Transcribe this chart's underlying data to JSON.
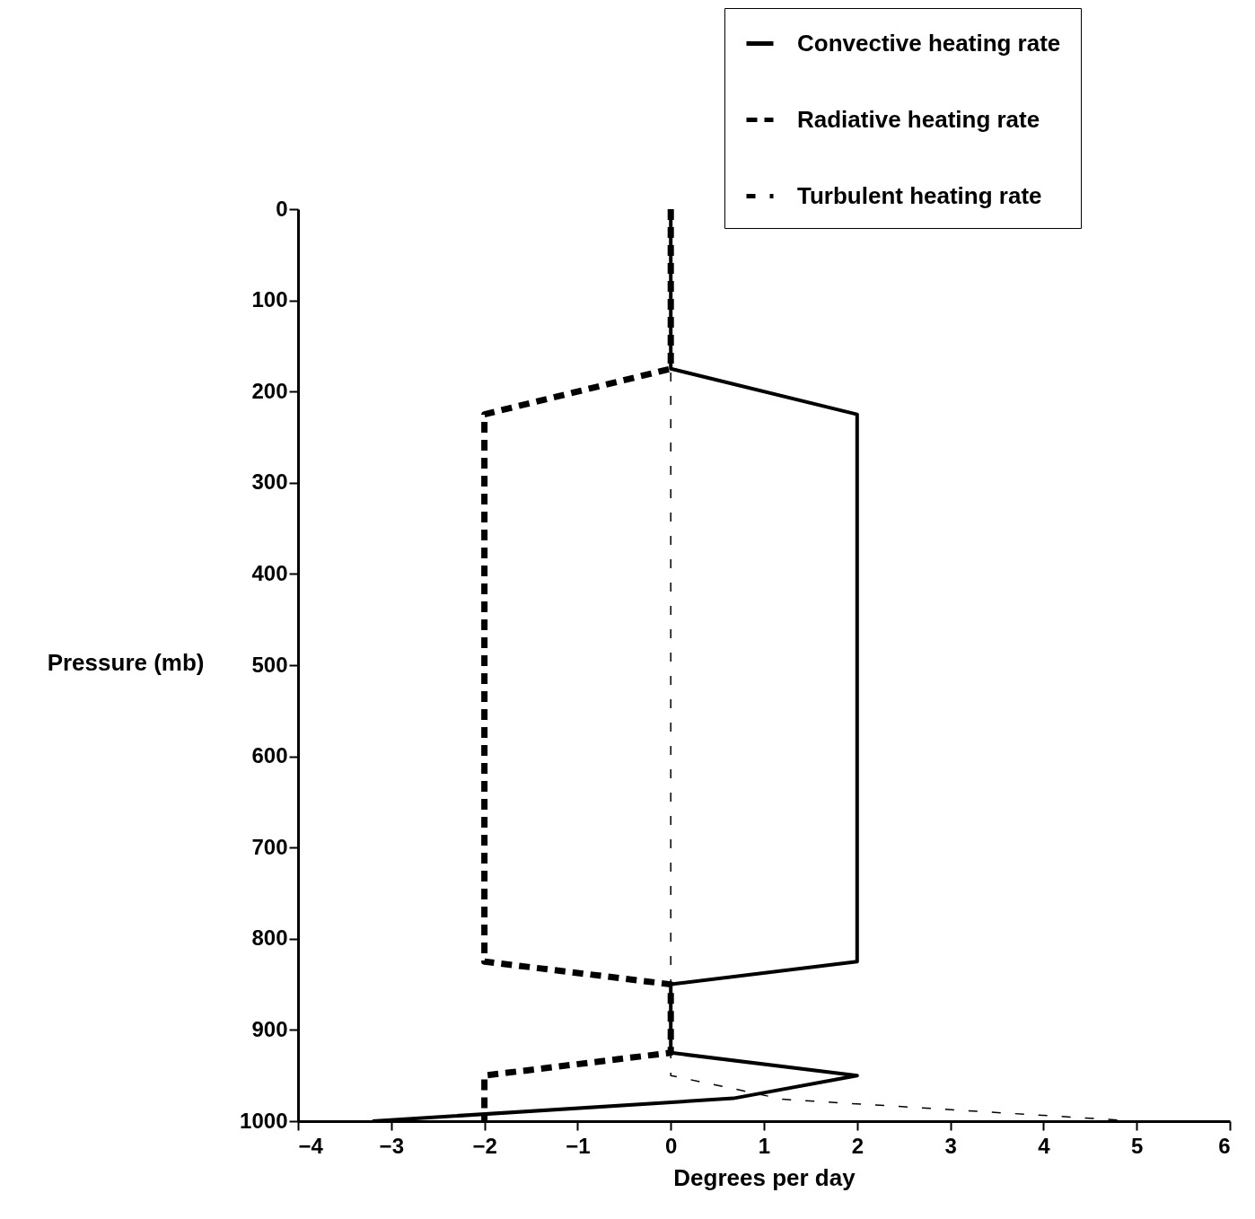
{
  "chart_data": {
    "type": "line",
    "xlabel": "Degrees per day",
    "ylabel": "Pressure (mb)",
    "xlim": [
      -4,
      6
    ],
    "xticks": [
      -4,
      -3,
      -2,
      -1,
      0,
      1,
      2,
      3,
      4,
      5,
      6
    ],
    "ylim": [
      1000,
      0
    ],
    "yticks": [
      0,
      100,
      200,
      300,
      400,
      500,
      600,
      700,
      800,
      900,
      1000
    ],
    "grid": false,
    "legend": "top right",
    "series": [
      {
        "name": "Convective heating rate",
        "color": "#000000",
        "line_style": "solid",
        "x": [
          0,
          0,
          2,
          2,
          0,
          0,
          2,
          0.67,
          -3.2
        ],
        "values": [
          0,
          175,
          225,
          825,
          850,
          925,
          950,
          975,
          1000
        ]
      },
      {
        "name": "Radiative heating rate",
        "color": "#000000",
        "line_style": "dashed",
        "x": [
          0,
          0,
          -2,
          -2,
          0,
          0,
          -2,
          -2
        ],
        "values": [
          0,
          175,
          225,
          825,
          850,
          925,
          950,
          1000
        ]
      },
      {
        "name": "Turbulent heating rate",
        "color": "#000000",
        "line_style": "dashed",
        "x": [
          0,
          0,
          0.7,
          1.2,
          5
        ],
        "values": [
          0,
          950,
          965,
          976,
          1000
        ]
      }
    ]
  }
}
